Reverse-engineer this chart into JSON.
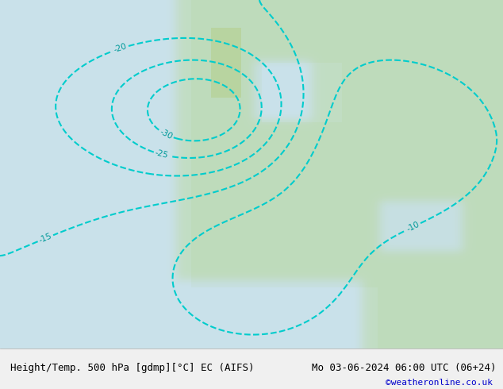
{
  "title_left": "Height/Temp. 500 hPa [gdmp][°C] EC (AIFS)",
  "title_right": "Mo 03-06-2024 06:00 UTC (06+24)",
  "credit": "©weatheronline.co.uk",
  "bg_color": "#e8f4e8",
  "map_bg": "#c8dfc8",
  "text_color": "#000000",
  "credit_color": "#0000cc",
  "fig_width": 6.34,
  "fig_height": 4.9,
  "dpi": 100,
  "bottom_bar_color": "#f0f0f0",
  "bottom_bar_height": 0.1
}
